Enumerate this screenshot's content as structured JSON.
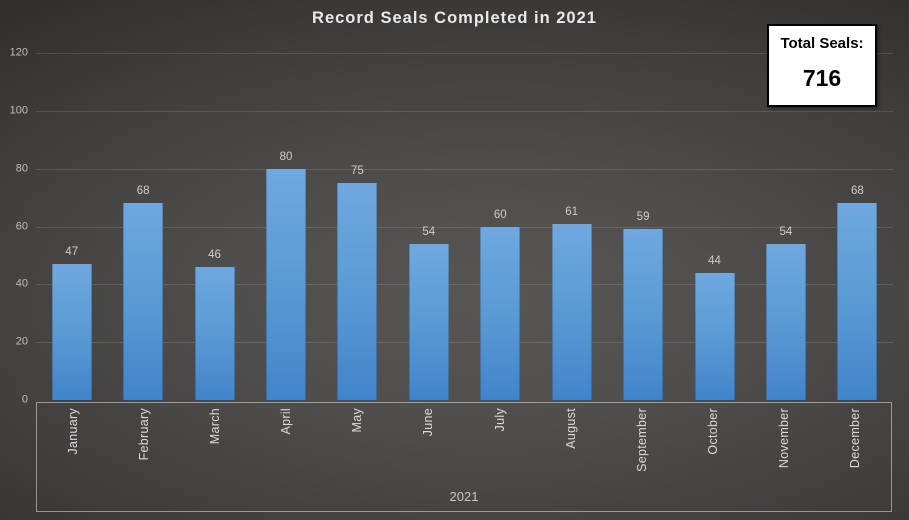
{
  "title": "Record Seals Completed in 2021",
  "total_box": {
    "label": "Total Seals:",
    "value": "716"
  },
  "chart_data": {
    "type": "bar",
    "title": "Record Seals Completed in 2021",
    "categories": [
      "January",
      "February",
      "March",
      "April",
      "May",
      "June",
      "July",
      "August",
      "September",
      "October",
      "November",
      "December"
    ],
    "values": [
      47,
      68,
      46,
      80,
      75,
      54,
      60,
      61,
      59,
      44,
      54,
      68
    ],
    "data_labels": [
      47,
      68,
      46,
      80,
      75,
      54,
      60,
      61,
      59,
      44,
      54,
      68
    ],
    "xlabel": "2021",
    "ylabel": "",
    "ylim": [
      0,
      120
    ],
    "yticks": [
      0,
      20,
      40,
      60,
      80,
      100,
      120
    ],
    "grid": true,
    "legend": false,
    "annotation_total": 716
  },
  "colors": {
    "bar": "#5B9BD5",
    "bar_gradient_top": "#6FA8DE",
    "bar_gradient_bottom": "#4284CA",
    "background_center": "#585653",
    "background_edge": "#1C1C1B",
    "title_text": "#E9E9E9",
    "axis_text": "#BFBFBF",
    "data_label_text": "#CFCDCB",
    "month_text": "#D9D9D9",
    "frame_border": "#C8C8C8",
    "total_box_bg": "#FFFFFF",
    "total_box_border": "#000000"
  }
}
